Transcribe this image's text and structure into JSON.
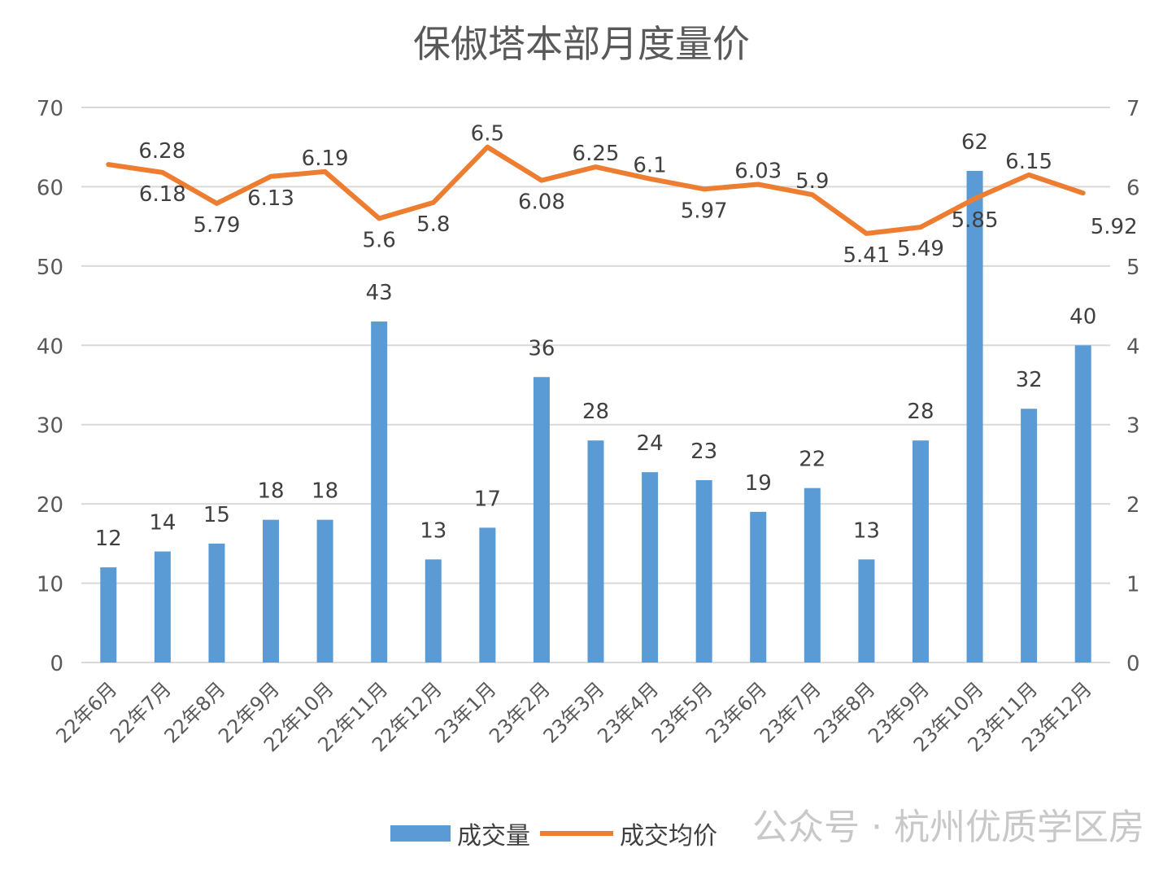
{
  "chart_data": {
    "type": "bar+line",
    "title": "保俶塔本部月度量价",
    "categories": [
      "22年6月",
      "22年7月",
      "22年8月",
      "22年9月",
      "22年10月",
      "22年11月",
      "22年12月",
      "23年1月",
      "23年2月",
      "23年3月",
      "23年4月",
      "23年5月",
      "23年6月",
      "23年7月",
      "23年8月",
      "23年9月",
      "23年10月",
      "23年11月",
      "23年12月"
    ],
    "series": [
      {
        "name": "成交量",
        "type": "bar",
        "axis": "left",
        "color": "#5b9bd5",
        "values": [
          12,
          14,
          15,
          18,
          18,
          43,
          13,
          17,
          36,
          28,
          24,
          23,
          19,
          22,
          13,
          28,
          62,
          32,
          40
        ]
      },
      {
        "name": "成交均价",
        "type": "line",
        "axis": "right",
        "color": "#ed7d31",
        "values": [
          6.28,
          6.18,
          5.79,
          6.13,
          6.19,
          5.6,
          5.8,
          6.5,
          6.08,
          6.25,
          6.1,
          5.97,
          6.03,
          5.9,
          5.41,
          5.49,
          5.85,
          6.15,
          5.92
        ]
      }
    ],
    "y_left": {
      "range": [
        0,
        70
      ],
      "ticks": [
        "0",
        "10",
        "20",
        "30",
        "40",
        "50",
        "60",
        "70"
      ]
    },
    "y_right": {
      "range": [
        0,
        7
      ],
      "ticks": [
        "0",
        "1",
        "2",
        "3",
        "4",
        "5",
        "6",
        "7"
      ]
    },
    "grid": true,
    "legend": "bottom"
  },
  "watermark": "公众号 · 杭州优质学区房"
}
